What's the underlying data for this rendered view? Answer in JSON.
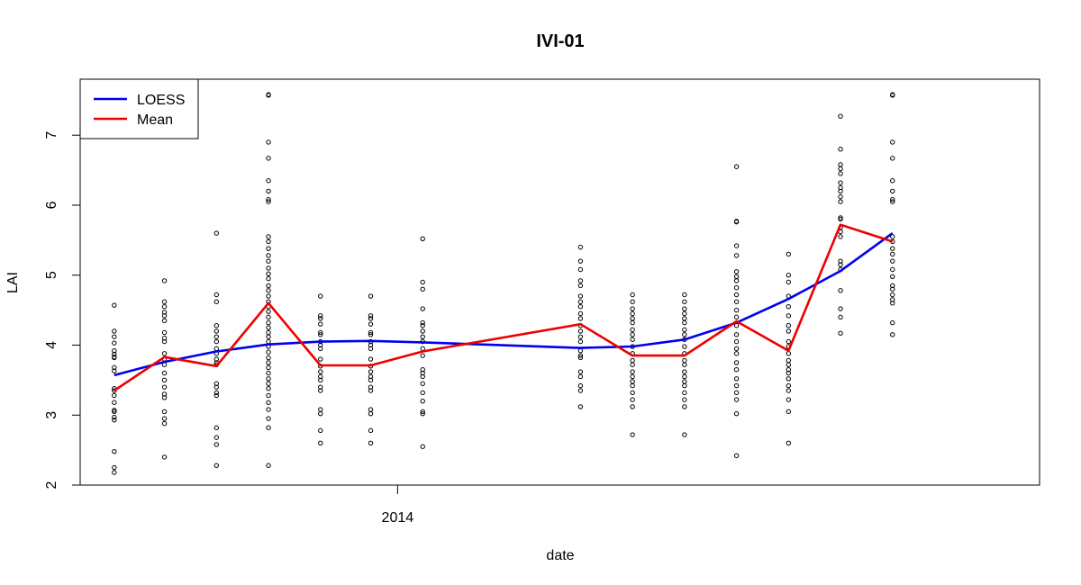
{
  "chart_data": {
    "type": "scatter",
    "title": "IVI-01",
    "xlabel": "date",
    "ylabel": "LAI",
    "x_axis": "date",
    "xlim": [
      "2013-07-08",
      "2014-12-25"
    ],
    "ylim": [
      2,
      7.8
    ],
    "x_ticks": [
      {
        "x": "2014-01-01",
        "label": "2014"
      }
    ],
    "y_ticks": [
      2,
      3,
      4,
      5,
      6,
      7
    ],
    "grid": false,
    "legend": {
      "position": "top-left",
      "entries": [
        {
          "label": "LOESS",
          "color": "#0000ee"
        },
        {
          "label": "Mean",
          "color": "#ee0000"
        }
      ]
    },
    "points": [
      {
        "x": "2013-07-27",
        "y": [
          4.57,
          4.2,
          4.12,
          4.03,
          3.92,
          3.87,
          3.83,
          3.82,
          3.68,
          3.63,
          3.38,
          3.35,
          3.28,
          3.18,
          3.07,
          3.05,
          2.97,
          2.93,
          2.48,
          2.25,
          2.18
        ]
      },
      {
        "x": "2013-08-24",
        "y": [
          4.92,
          4.62,
          4.55,
          4.47,
          4.42,
          4.35,
          4.18,
          4.1,
          4.05,
          3.88,
          3.8,
          3.72,
          3.6,
          3.5,
          3.4,
          3.3,
          3.25,
          3.05,
          2.95,
          2.88,
          2.4
        ]
      },
      {
        "x": "2013-09-22",
        "y": [
          5.6,
          4.72,
          4.62,
          4.28,
          4.2,
          4.12,
          4.05,
          3.95,
          3.88,
          3.8,
          3.75,
          3.72,
          3.45,
          3.4,
          3.32,
          3.28,
          2.82,
          2.68,
          2.58,
          2.28
        ]
      },
      {
        "x": "2013-10-21",
        "y": [
          7.58,
          7.57,
          6.9,
          6.67,
          6.35,
          6.2,
          6.08,
          6.05,
          5.55,
          5.48,
          5.38,
          5.28,
          5.2,
          5.1,
          5.02,
          4.95,
          4.85,
          4.78,
          4.7,
          4.62,
          4.55,
          4.48,
          4.4,
          4.32,
          4.25,
          4.18,
          4.12,
          4.05,
          3.98,
          3.9,
          3.82,
          3.75,
          3.68,
          3.6,
          3.52,
          3.45,
          3.38,
          3.28,
          3.18,
          3.08,
          2.95,
          2.82,
          2.28
        ]
      },
      {
        "x": "2013-11-19",
        "y": [
          4.7,
          4.42,
          4.38,
          4.3,
          4.18,
          4.15,
          4.05,
          4.0,
          3.95,
          3.8,
          3.7,
          3.62,
          3.55,
          3.5,
          3.4,
          3.35,
          3.08,
          3.02,
          2.78,
          2.6
        ]
      },
      {
        "x": "2013-12-17",
        "y": [
          4.7,
          4.42,
          4.38,
          4.3,
          4.18,
          4.15,
          4.05,
          4.0,
          3.95,
          3.8,
          3.7,
          3.62,
          3.55,
          3.5,
          3.4,
          3.35,
          3.08,
          3.02,
          2.78,
          2.6
        ]
      },
      {
        "x": "2014-01-15",
        "y": [
          5.52,
          4.9,
          4.8,
          4.52,
          4.32,
          4.28,
          4.2,
          4.12,
          4.05,
          3.95,
          3.85,
          3.65,
          3.6,
          3.55,
          3.45,
          3.32,
          3.2,
          3.05,
          3.02,
          2.55
        ]
      },
      {
        "x": "2014-04-13",
        "y": [
          5.4,
          5.2,
          5.08,
          4.92,
          4.85,
          4.7,
          4.62,
          4.55,
          4.45,
          4.38,
          4.28,
          4.2,
          4.12,
          4.05,
          3.92,
          3.85,
          3.82,
          3.62,
          3.55,
          3.42,
          3.35,
          3.12
        ]
      },
      {
        "x": "2014-05-12",
        "y": [
          4.72,
          4.62,
          4.52,
          4.45,
          4.38,
          4.32,
          4.22,
          4.15,
          4.08,
          3.98,
          3.88,
          3.78,
          3.72,
          3.62,
          3.55,
          3.48,
          3.42,
          3.32,
          3.22,
          3.12,
          2.72
        ]
      },
      {
        "x": "2014-06-10",
        "y": [
          4.72,
          4.62,
          4.52,
          4.45,
          4.38,
          4.32,
          4.22,
          4.15,
          4.08,
          3.98,
          3.88,
          3.78,
          3.72,
          3.62,
          3.55,
          3.48,
          3.42,
          3.32,
          3.22,
          3.12,
          2.72
        ]
      },
      {
        "x": "2014-07-09",
        "y": [
          6.55,
          5.77,
          5.76,
          5.42,
          5.28,
          5.05,
          4.98,
          4.92,
          4.82,
          4.72,
          4.62,
          4.5,
          4.4,
          4.28,
          4.15,
          4.05,
          3.95,
          3.88,
          3.75,
          3.65,
          3.52,
          3.42,
          3.32,
          3.22,
          3.02,
          2.42
        ]
      },
      {
        "x": "2014-08-07",
        "y": [
          5.3,
          5.0,
          4.9,
          4.7,
          4.55,
          4.42,
          4.28,
          4.2,
          4.05,
          3.98,
          3.88,
          3.78,
          3.72,
          3.65,
          3.6,
          3.52,
          3.42,
          3.35,
          3.22,
          3.05,
          2.6
        ]
      },
      {
        "x": "2014-09-05",
        "y": [
          7.27,
          6.8,
          6.58,
          6.52,
          6.45,
          6.32,
          6.25,
          6.2,
          6.12,
          6.05,
          5.82,
          5.8,
          5.68,
          5.62,
          5.55,
          5.2,
          5.15,
          5.08,
          4.78,
          4.52,
          4.4,
          4.17
        ]
      },
      {
        "x": "2014-10-04",
        "y": [
          7.58,
          7.57,
          6.9,
          6.67,
          6.35,
          6.2,
          6.08,
          6.05,
          5.55,
          5.48,
          5.38,
          5.3,
          5.2,
          5.08,
          4.98,
          4.85,
          4.8,
          4.72,
          4.65,
          4.6,
          4.32,
          4.15
        ]
      }
    ],
    "series": [
      {
        "name": "LOESS",
        "color": "#0000ee",
        "x": [
          "2013-07-27",
          "2013-08-24",
          "2013-09-22",
          "2013-10-21",
          "2013-11-19",
          "2013-12-17",
          "2014-01-15",
          "2014-04-13",
          "2014-05-12",
          "2014-06-10",
          "2014-07-09",
          "2014-08-07",
          "2014-09-05",
          "2014-10-04"
        ],
        "y": [
          3.57,
          3.76,
          3.91,
          4.01,
          4.05,
          4.06,
          4.04,
          3.96,
          3.98,
          4.08,
          4.32,
          4.66,
          5.06,
          5.6
        ]
      },
      {
        "name": "Mean",
        "color": "#ee0000",
        "x": [
          "2013-07-27",
          "2013-08-24",
          "2013-09-22",
          "2013-10-21",
          "2013-11-19",
          "2013-12-17",
          "2014-01-15",
          "2014-04-13",
          "2014-05-12",
          "2014-06-10",
          "2014-07-09",
          "2014-08-07",
          "2014-09-05",
          "2014-10-04"
        ],
        "y": [
          3.35,
          3.83,
          3.7,
          4.6,
          3.71,
          3.71,
          3.91,
          4.3,
          3.85,
          3.85,
          4.34,
          3.92,
          5.72,
          5.48
        ]
      }
    ]
  }
}
